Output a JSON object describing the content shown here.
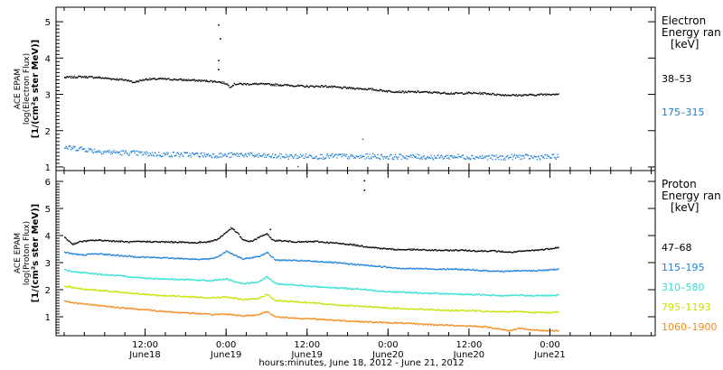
{
  "chart_data": [
    {
      "type": "scatter",
      "panel": "electron",
      "ylabel": [
        "ACE EPAM",
        "log(Electron Flux)",
        "[1/(cm²s ster MeV)]"
      ],
      "yticks": [
        1,
        2,
        3,
        4,
        5
      ],
      "ylim": [
        0.9,
        5.4
      ],
      "legend_title": [
        "Electron",
        "Energy ran",
        "[keV]"
      ],
      "series": [
        {
          "name": "38–53",
          "color": "#000000",
          "values": [
            [
              0.0,
              3.48
            ],
            [
              0.1,
              3.5
            ],
            [
              0.2,
              3.48
            ],
            [
              0.3,
              3.44
            ],
            [
              0.4,
              3.4
            ],
            [
              0.42,
              3.34
            ],
            [
              0.5,
              3.43
            ],
            [
              0.6,
              3.44
            ],
            [
              0.7,
              3.42
            ],
            [
              0.8,
              3.4
            ],
            [
              0.9,
              3.38
            ],
            [
              0.95,
              3.36
            ],
            [
              1.0,
              3.31
            ],
            [
              1.02,
              3.22
            ],
            [
              1.05,
              3.3
            ],
            [
              1.1,
              3.3
            ],
            [
              1.2,
              3.3
            ],
            [
              1.3,
              3.28
            ],
            [
              1.4,
              3.26
            ],
            [
              1.5,
              3.23
            ],
            [
              1.6,
              3.24
            ],
            [
              1.7,
              3.2
            ],
            [
              1.8,
              3.18
            ],
            [
              1.9,
              3.15
            ],
            [
              2.0,
              3.1
            ],
            [
              2.1,
              3.08
            ],
            [
              2.2,
              3.08
            ],
            [
              2.3,
              3.06
            ],
            [
              2.4,
              3.04
            ],
            [
              2.5,
              3.05
            ],
            [
              2.6,
              3.04
            ],
            [
              2.7,
              3.0
            ],
            [
              2.8,
              2.99
            ],
            [
              2.9,
              3.0
            ],
            [
              3.0,
              3.02
            ],
            [
              3.05,
              3.03
            ]
          ],
          "outliers": [
            [
              0.95,
              3.7
            ],
            [
              0.95,
              3.95
            ],
            [
              0.96,
              4.55
            ],
            [
              0.95,
              4.93
            ]
          ]
        },
        {
          "name": "175–315",
          "color": "#1c7fd8",
          "values": [
            [
              0.0,
              1.55
            ],
            [
              0.1,
              1.52
            ],
            [
              0.2,
              1.45
            ],
            [
              0.3,
              1.42
            ],
            [
              0.4,
              1.4
            ],
            [
              0.5,
              1.38
            ],
            [
              0.6,
              1.36
            ],
            [
              0.7,
              1.36
            ],
            [
              0.8,
              1.35
            ],
            [
              0.9,
              1.34
            ],
            [
              1.0,
              1.33
            ],
            [
              1.1,
              1.36
            ],
            [
              1.2,
              1.32
            ],
            [
              1.3,
              1.31
            ],
            [
              1.4,
              1.3
            ],
            [
              1.5,
              1.31
            ],
            [
              1.6,
              1.3
            ],
            [
              1.7,
              1.32
            ],
            [
              1.8,
              1.28
            ],
            [
              1.9,
              1.31
            ],
            [
              2.0,
              1.29
            ],
            [
              2.1,
              1.3
            ],
            [
              2.2,
              1.29
            ],
            [
              2.3,
              1.28
            ],
            [
              2.4,
              1.3
            ],
            [
              2.5,
              1.29
            ],
            [
              2.6,
              1.28
            ],
            [
              2.7,
              1.27
            ],
            [
              2.8,
              1.3
            ],
            [
              2.9,
              1.28
            ],
            [
              3.0,
              1.29
            ],
            [
              3.05,
              1.3
            ]
          ],
          "outliers": [
            [
              1.44,
              1.03
            ],
            [
              1.84,
              1.78
            ]
          ]
        }
      ]
    },
    {
      "type": "scatter",
      "panel": "proton",
      "ylabel": [
        "ACE EPAM",
        "log(Proton Flux)",
        "[1/(cm²s ster MeV)]"
      ],
      "yticks": [
        1,
        2,
        3,
        4,
        5,
        6
      ],
      "ylim": [
        0.3,
        6.4
      ],
      "legend_title": [
        "Proton",
        "Energy ran",
        "[keV]"
      ],
      "xlabel": "hours:minutes, June 18, 2012 - June 21, 2012",
      "xlim": [
        -0.05,
        3.65
      ],
      "xticks": [
        {
          "x": 0.5,
          "label": "12:00",
          "sub": "June18"
        },
        {
          "x": 1.0,
          "label": "0:00",
          "sub": "June19"
        },
        {
          "x": 1.5,
          "label": "12:00",
          "sub": "June19"
        },
        {
          "x": 2.0,
          "label": "0:00",
          "sub": "June20"
        },
        {
          "x": 2.5,
          "label": "12:00",
          "sub": "June20"
        },
        {
          "x": 3.0,
          "label": "0:00",
          "sub": "June21"
        }
      ],
      "series": [
        {
          "name": "47–68",
          "color": "#000000",
          "values": [
            [
              0.0,
              3.95
            ],
            [
              0.05,
              3.7
            ],
            [
              0.1,
              3.8
            ],
            [
              0.2,
              3.85
            ],
            [
              0.3,
              3.82
            ],
            [
              0.4,
              3.78
            ],
            [
              0.5,
              3.8
            ],
            [
              0.6,
              3.78
            ],
            [
              0.7,
              3.78
            ],
            [
              0.8,
              3.75
            ],
            [
              0.9,
              3.8
            ],
            [
              0.95,
              3.9
            ],
            [
              1.0,
              4.15
            ],
            [
              1.03,
              4.3
            ],
            [
              1.07,
              4.1
            ],
            [
              1.1,
              3.85
            ],
            [
              1.15,
              3.8
            ],
            [
              1.2,
              3.95
            ],
            [
              1.25,
              4.1
            ],
            [
              1.28,
              3.85
            ],
            [
              1.35,
              3.82
            ],
            [
              1.45,
              3.78
            ],
            [
              1.55,
              3.8
            ],
            [
              1.65,
              3.75
            ],
            [
              1.75,
              3.7
            ],
            [
              1.85,
              3.62
            ],
            [
              1.95,
              3.55
            ],
            [
              2.05,
              3.5
            ],
            [
              2.15,
              3.5
            ],
            [
              2.25,
              3.48
            ],
            [
              2.35,
              3.47
            ],
            [
              2.45,
              3.48
            ],
            [
              2.55,
              3.45
            ],
            [
              2.65,
              3.45
            ],
            [
              2.75,
              3.4
            ],
            [
              2.85,
              3.45
            ],
            [
              2.95,
              3.5
            ],
            [
              3.05,
              3.58
            ]
          ],
          "outliers": [
            [
              1.85,
              5.7
            ],
            [
              1.85,
              6.05
            ],
            [
              1.27,
              4.25
            ]
          ]
        },
        {
          "name": "115–195",
          "color": "#1c7fd8",
          "values": [
            [
              0.0,
              3.4
            ],
            [
              0.1,
              3.3
            ],
            [
              0.2,
              3.35
            ],
            [
              0.3,
              3.3
            ],
            [
              0.4,
              3.25
            ],
            [
              0.5,
              3.22
            ],
            [
              0.6,
              3.2
            ],
            [
              0.7,
              3.18
            ],
            [
              0.8,
              3.15
            ],
            [
              0.9,
              3.15
            ],
            [
              0.95,
              3.25
            ],
            [
              1.0,
              3.45
            ],
            [
              1.05,
              3.3
            ],
            [
              1.1,
              3.15
            ],
            [
              1.2,
              3.25
            ],
            [
              1.25,
              3.4
            ],
            [
              1.3,
              3.12
            ],
            [
              1.4,
              3.1
            ],
            [
              1.5,
              3.08
            ],
            [
              1.6,
              3.05
            ],
            [
              1.7,
              3.0
            ],
            [
              1.8,
              2.95
            ],
            [
              1.9,
              2.9
            ],
            [
              2.0,
              2.85
            ],
            [
              2.1,
              2.8
            ],
            [
              2.2,
              2.8
            ],
            [
              2.3,
              2.78
            ],
            [
              2.4,
              2.78
            ],
            [
              2.5,
              2.75
            ],
            [
              2.6,
              2.72
            ],
            [
              2.7,
              2.7
            ],
            [
              2.8,
              2.72
            ],
            [
              2.9,
              2.72
            ],
            [
              3.0,
              2.75
            ],
            [
              3.05,
              2.78
            ]
          ]
        },
        {
          "name": "310–580",
          "color": "#2ee0d0",
          "values": [
            [
              0.0,
              2.75
            ],
            [
              0.1,
              2.65
            ],
            [
              0.2,
              2.6
            ],
            [
              0.3,
              2.55
            ],
            [
              0.4,
              2.5
            ],
            [
              0.5,
              2.45
            ],
            [
              0.6,
              2.42
            ],
            [
              0.7,
              2.4
            ],
            [
              0.8,
              2.38
            ],
            [
              0.9,
              2.35
            ],
            [
              1.0,
              2.42
            ],
            [
              1.05,
              2.3
            ],
            [
              1.1,
              2.25
            ],
            [
              1.2,
              2.3
            ],
            [
              1.25,
              2.5
            ],
            [
              1.3,
              2.25
            ],
            [
              1.4,
              2.2
            ],
            [
              1.5,
              2.15
            ],
            [
              1.6,
              2.12
            ],
            [
              1.7,
              2.08
            ],
            [
              1.8,
              2.05
            ],
            [
              1.9,
              2.0
            ],
            [
              2.0,
              1.95
            ],
            [
              2.1,
              1.92
            ],
            [
              2.2,
              1.9
            ],
            [
              2.3,
              1.88
            ],
            [
              2.4,
              1.85
            ],
            [
              2.5,
              1.85
            ],
            [
              2.6,
              1.82
            ],
            [
              2.7,
              1.8
            ],
            [
              2.8,
              1.82
            ],
            [
              2.9,
              1.8
            ],
            [
              3.0,
              1.8
            ],
            [
              3.05,
              1.82
            ]
          ]
        },
        {
          "name": "795–1193",
          "color": "#c8e000",
          "values": [
            [
              0.0,
              2.15
            ],
            [
              0.1,
              2.05
            ],
            [
              0.2,
              2.0
            ],
            [
              0.3,
              1.95
            ],
            [
              0.4,
              1.9
            ],
            [
              0.5,
              1.85
            ],
            [
              0.6,
              1.8
            ],
            [
              0.7,
              1.78
            ],
            [
              0.8,
              1.75
            ],
            [
              0.9,
              1.72
            ],
            [
              1.0,
              1.75
            ],
            [
              1.1,
              1.65
            ],
            [
              1.2,
              1.7
            ],
            [
              1.25,
              1.85
            ],
            [
              1.3,
              1.62
            ],
            [
              1.4,
              1.58
            ],
            [
              1.5,
              1.55
            ],
            [
              1.6,
              1.5
            ],
            [
              1.7,
              1.45
            ],
            [
              1.8,
              1.42
            ],
            [
              1.9,
              1.38
            ],
            [
              2.0,
              1.35
            ],
            [
              2.1,
              1.32
            ],
            [
              2.2,
              1.3
            ],
            [
              2.3,
              1.28
            ],
            [
              2.4,
              1.25
            ],
            [
              2.5,
              1.25
            ],
            [
              2.6,
              1.22
            ],
            [
              2.7,
              1.2
            ],
            [
              2.8,
              1.22
            ],
            [
              2.9,
              1.18
            ],
            [
              3.0,
              1.18
            ],
            [
              3.05,
              1.2
            ]
          ]
        },
        {
          "name": "1060–1900",
          "color": "#f08a1c",
          "values": [
            [
              0.0,
              1.6
            ],
            [
              0.1,
              1.5
            ],
            [
              0.2,
              1.45
            ],
            [
              0.3,
              1.38
            ],
            [
              0.4,
              1.32
            ],
            [
              0.5,
              1.28
            ],
            [
              0.6,
              1.22
            ],
            [
              0.7,
              1.18
            ],
            [
              0.8,
              1.15
            ],
            [
              0.9,
              1.1
            ],
            [
              1.0,
              1.12
            ],
            [
              1.1,
              1.05
            ],
            [
              1.2,
              1.1
            ],
            [
              1.25,
              1.22
            ],
            [
              1.3,
              1.02
            ],
            [
              1.4,
              0.98
            ],
            [
              1.5,
              0.95
            ],
            [
              1.6,
              0.92
            ],
            [
              1.7,
              0.88
            ],
            [
              1.8,
              0.85
            ],
            [
              1.9,
              0.82
            ],
            [
              2.0,
              0.8
            ],
            [
              2.1,
              0.78
            ],
            [
              2.2,
              0.75
            ],
            [
              2.3,
              0.72
            ],
            [
              2.4,
              0.7
            ],
            [
              2.5,
              0.68
            ],
            [
              2.6,
              0.65
            ],
            [
              2.7,
              0.55
            ],
            [
              2.75,
              0.5
            ],
            [
              2.8,
              0.6
            ],
            [
              2.9,
              0.52
            ],
            [
              3.0,
              0.5
            ],
            [
              3.05,
              0.5
            ]
          ]
        }
      ]
    }
  ]
}
